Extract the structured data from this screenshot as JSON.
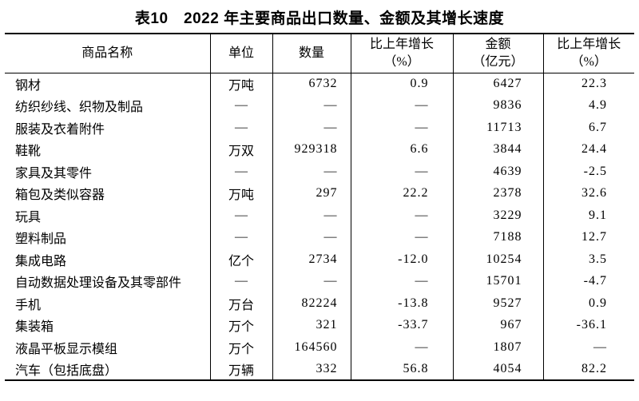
{
  "title": "表10　2022 年主要商品出口数量、金额及其增长速度",
  "table": {
    "columns": [
      {
        "label": "商品名称",
        "sub": ""
      },
      {
        "label": "单位",
        "sub": ""
      },
      {
        "label": "数量",
        "sub": ""
      },
      {
        "label": "比上年增长",
        "sub": "（%）"
      },
      {
        "label": "金额",
        "sub": "（亿元）"
      },
      {
        "label": "比上年增长",
        "sub": "（%）"
      }
    ],
    "rows": [
      [
        "钢材",
        "万吨",
        "6732",
        "0.9",
        "6427",
        "22.3"
      ],
      [
        "纺织纱线、织物及制品",
        "—",
        "—",
        "—",
        "9836",
        "4.9"
      ],
      [
        "服装及衣着附件",
        "—",
        "—",
        "—",
        "11713",
        "6.7"
      ],
      [
        "鞋靴",
        "万双",
        "929318",
        "6.6",
        "3844",
        "24.4"
      ],
      [
        "家具及其零件",
        "—",
        "—",
        "—",
        "4639",
        "-2.5"
      ],
      [
        "箱包及类似容器",
        "万吨",
        "297",
        "22.2",
        "2378",
        "32.6"
      ],
      [
        "玩具",
        "—",
        "—",
        "—",
        "3229",
        "9.1"
      ],
      [
        "塑料制品",
        "—",
        "—",
        "—",
        "7188",
        "12.7"
      ],
      [
        "集成电路",
        "亿个",
        "2734",
        "-12.0",
        "10254",
        "3.5"
      ],
      [
        "自动数据处理设备及其零部件",
        "—",
        "—",
        "—",
        "15701",
        "-4.7"
      ],
      [
        "手机",
        "万台",
        "82224",
        "-13.8",
        "9527",
        "0.9"
      ],
      [
        "集装箱",
        "万个",
        "321",
        "-33.7",
        "967",
        "-36.1"
      ],
      [
        "液晶平板显示模组",
        "万个",
        "164560",
        "—",
        "1807",
        "—"
      ],
      [
        "汽车（包括底盘）",
        "万辆",
        "332",
        "56.8",
        "4054",
        "82.2"
      ]
    ],
    "colors": {
      "text": "#000000",
      "border": "#000000",
      "background": "#ffffff"
    }
  }
}
